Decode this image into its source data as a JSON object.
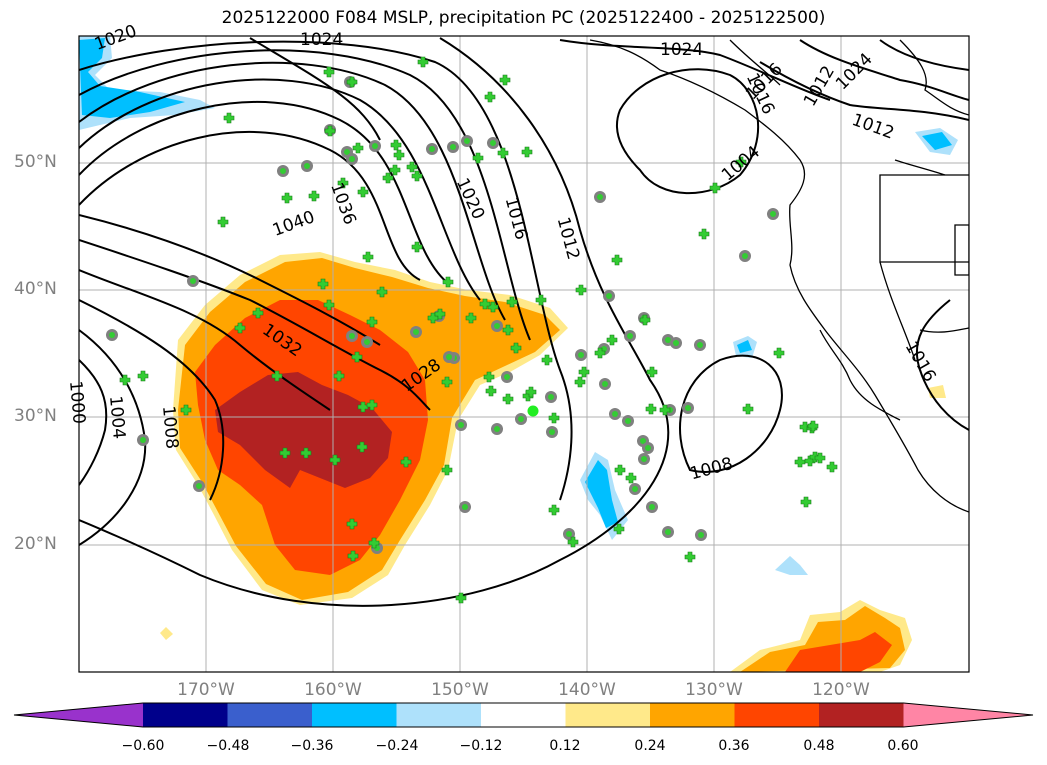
{
  "title": "2025122000 F084 MSLP, precipitation PC (2025122400 - 2025122500)",
  "lat_labels": [
    "50°N",
    "40°N",
    "30°N",
    "20°N"
  ],
  "lon_labels": [
    "170°W",
    "160°W",
    "150°W",
    "140°W",
    "130°W",
    "120°W"
  ],
  "isobar_labels": [
    "1020",
    "1024",
    "1024",
    "1036",
    "1040",
    "1032",
    "1028",
    "1020",
    "1016",
    "1012",
    "1008",
    "1004",
    "1000",
    "1004",
    "1008",
    "1016",
    "1012",
    "1016",
    "1024",
    "1012",
    "1016"
  ],
  "colorbar": {
    "ticks": [
      "−0.60",
      "−0.48",
      "−0.36",
      "−0.24",
      "−0.12",
      "0.12",
      "0.24",
      "0.36",
      "0.48",
      "0.60"
    ],
    "bins": [
      {
        "range": "< -0.60",
        "color": "#9932cc"
      },
      {
        "range": "-0.60 to -0.48",
        "color": "#00008b"
      },
      {
        "range": "-0.48 to -0.36",
        "color": "#3a5fcd"
      },
      {
        "range": "-0.36 to -0.24",
        "color": "#00bfff"
      },
      {
        "range": "-0.24 to -0.12",
        "color": "#aee1fb"
      },
      {
        "range": "-0.12 to 0.12",
        "color": "#ffffff"
      },
      {
        "range": "0.12 to 0.24",
        "color": "#ffe98a"
      },
      {
        "range": "0.24 to 0.36",
        "color": "#ffa500"
      },
      {
        "range": "0.36 to 0.48",
        "color": "#ff4500"
      },
      {
        "range": "0.48 to 0.60",
        "color": "#b22222"
      },
      {
        "range": "> 0.60",
        "color": "#ff85a5"
      }
    ]
  },
  "map": {
    "lon_range": [
      -180,
      -110
    ],
    "lat_range": [
      10,
      60
    ],
    "grid": true,
    "marker_colors": {
      "cross": "#33cc33",
      "circle_fill": "#33cc33",
      "circle_edge": "#808080"
    }
  }
}
